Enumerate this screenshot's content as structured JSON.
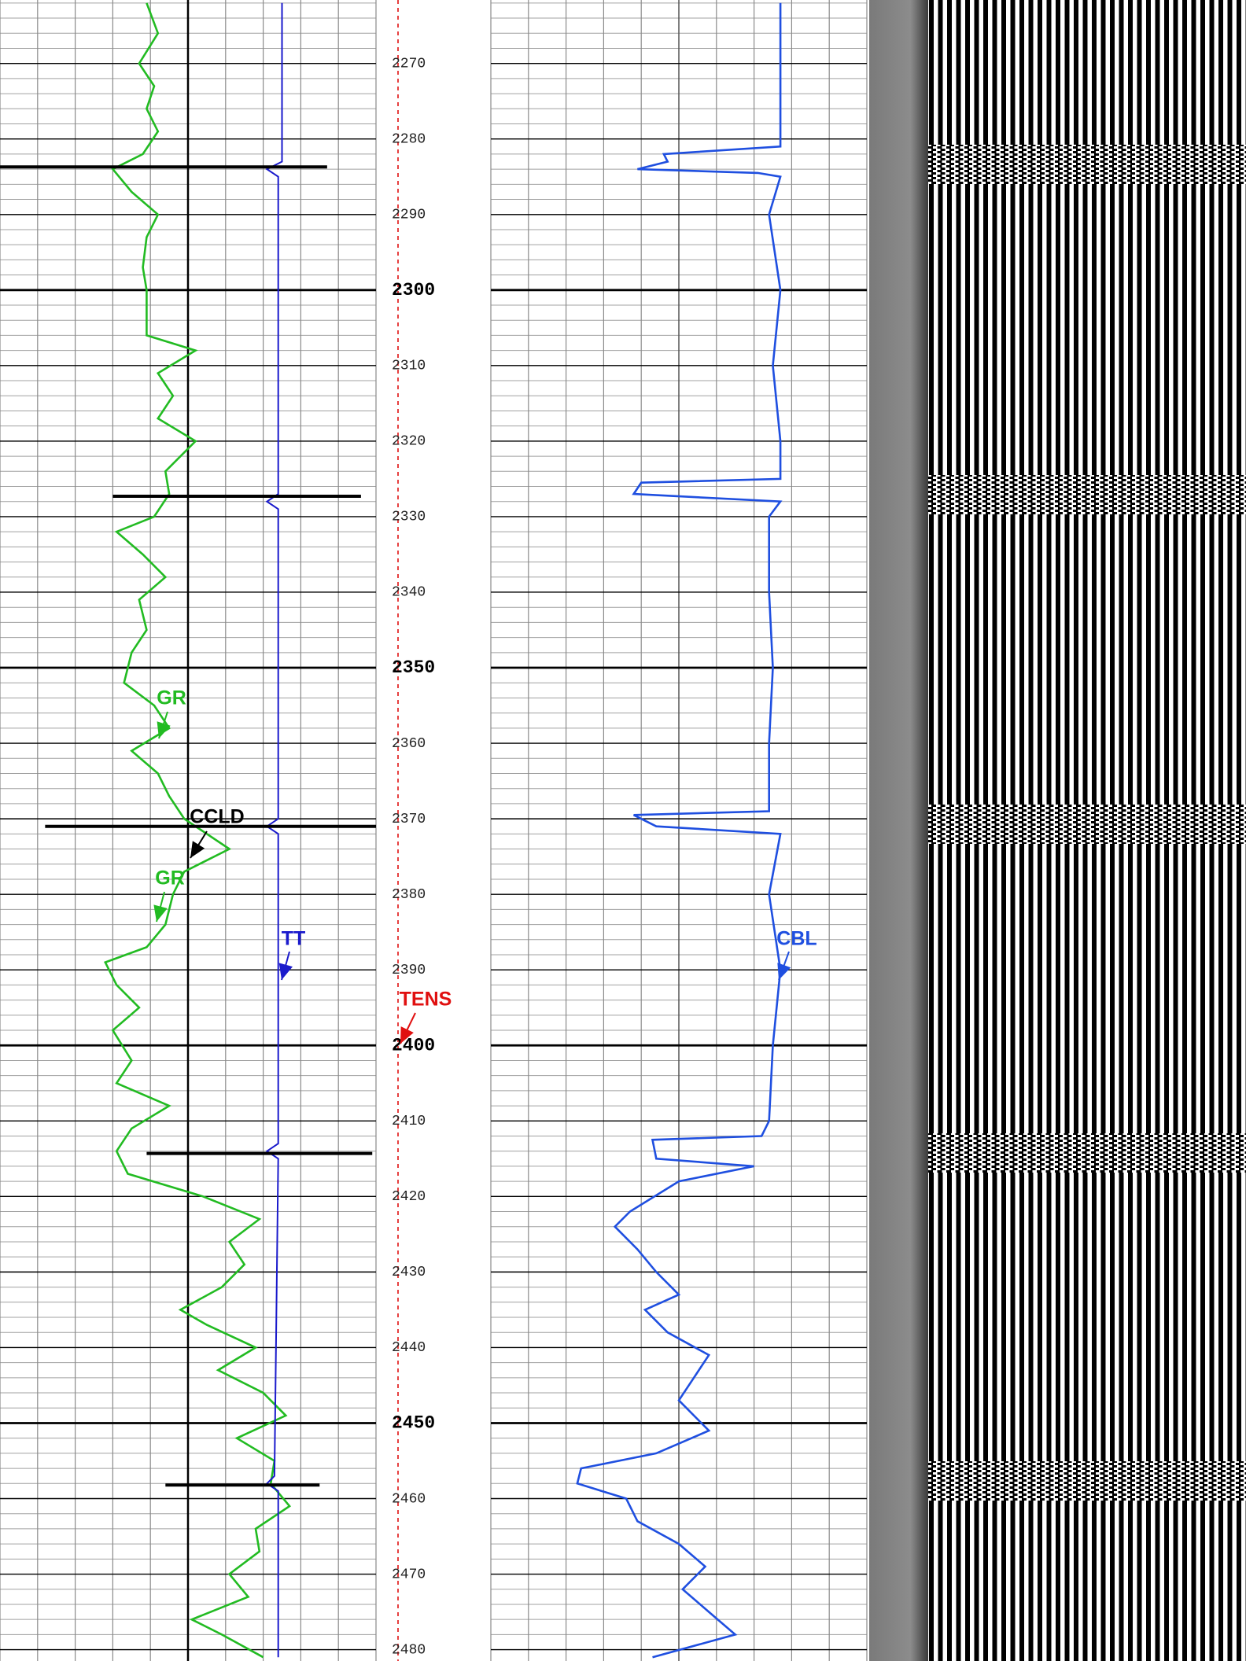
{
  "chart_data": {
    "type": "well_log",
    "ylim": [
      2481.5,
      2261.6
    ],
    "yticks": [
      2270,
      2280,
      2290,
      2300,
      2310,
      2320,
      2330,
      2340,
      2350,
      2360,
      2370,
      2380,
      2390,
      2400,
      2410,
      2420,
      2430,
      2440,
      2450,
      2460,
      2470,
      2480
    ],
    "major_tick_step": 50,
    "minor_tick_step": 2,
    "xlim": [
      0,
      10
    ],
    "track_divisions": 10,
    "series": [
      {
        "name": "GR",
        "color": "#22bb22",
        "track": 1,
        "x": [
          2262,
          2266,
          2270,
          2273,
          2276,
          2279,
          2282,
          2284,
          2287,
          2290,
          2293,
          2297,
          2300,
          2303,
          2306,
          2308,
          2311,
          2314,
          2317,
          2320,
          2324,
          2327,
          2330,
          2332,
          2335,
          2338,
          2341,
          2345,
          2348,
          2352,
          2355,
          2358,
          2361,
          2364,
          2367,
          2370,
          2374,
          2377,
          2380,
          2384,
          2387,
          2389,
          2392,
          2395,
          2398,
          2402,
          2405,
          2408,
          2411,
          2414,
          2417,
          2420,
          2423,
          2426,
          2429,
          2432,
          2435,
          2437,
          2440,
          2443,
          2446,
          2449,
          2452,
          2455,
          2458,
          2461,
          2464,
          2467,
          2470,
          2473,
          2476,
          2478,
          2481
        ],
        "values": [
          3.9,
          4.2,
          3.7,
          4.1,
          3.9,
          4.2,
          3.8,
          3.0,
          3.5,
          4.2,
          3.9,
          3.8,
          3.9,
          3.9,
          3.9,
          5.2,
          4.2,
          4.6,
          4.2,
          5.2,
          4.4,
          4.5,
          4.1,
          3.1,
          3.8,
          4.4,
          3.7,
          3.9,
          3.5,
          3.3,
          4.1,
          4.5,
          3.5,
          4.2,
          4.5,
          4.9,
          6.1,
          4.9,
          4.6,
          4.4,
          3.9,
          2.8,
          3.1,
          3.7,
          3.0,
          3.5,
          3.1,
          4.5,
          3.5,
          3.1,
          3.4,
          5.4,
          6.9,
          6.1,
          6.5,
          5.9,
          4.8,
          5.5,
          6.8,
          5.8,
          7.0,
          7.6,
          6.3,
          7.3,
          7.2,
          7.7,
          6.8,
          6.9,
          6.1,
          6.6,
          5.1,
          5.9,
          7.0
        ]
      },
      {
        "name": "TT",
        "color": "#1a1acc",
        "track": 1,
        "x": [
          2262,
          2283,
          2284,
          2285,
          2327,
          2328,
          2329,
          2370,
          2371,
          2372,
          2413,
          2414,
          2415,
          2457,
          2458,
          2459,
          2481
        ],
        "values": [
          7.5,
          7.5,
          7.1,
          7.4,
          7.4,
          7.1,
          7.4,
          7.4,
          7.1,
          7.4,
          7.4,
          7.1,
          7.4,
          7.3,
          7.1,
          7.4,
          7.4
        ]
      },
      {
        "name": "CBL",
        "color": "#1f4fe0",
        "track": 2,
        "x": [
          2262,
          2270,
          2280,
          2281,
          2282,
          2283,
          2284,
          2284.5,
          2285,
          2290,
          2300,
          2310,
          2320,
          2325,
          2325.5,
          2327,
          2328,
          2330,
          2340,
          2350,
          2360,
          2369,
          2369.5,
          2371,
          2372,
          2380,
          2390,
          2400,
          2410,
          2412,
          2412.5,
          2415,
          2416,
          2418,
          2422,
          2424,
          2427,
          2430,
          2433,
          2435,
          2438,
          2441,
          2444,
          2447,
          2451,
          2454,
          2456,
          2458,
          2460,
          2463,
          2466,
          2469,
          2472,
          2475,
          2478,
          2481
        ],
        "values": [
          7.7,
          7.7,
          7.7,
          7.7,
          4.6,
          4.7,
          3.9,
          7.1,
          7.7,
          7.4,
          7.7,
          7.5,
          7.7,
          7.7,
          4.0,
          3.8,
          7.7,
          7.4,
          7.4,
          7.5,
          7.4,
          7.4,
          3.8,
          4.4,
          7.7,
          7.4,
          7.7,
          7.5,
          7.4,
          7.2,
          4.3,
          4.4,
          7.0,
          5.0,
          3.7,
          3.3,
          3.9,
          4.4,
          5.0,
          4.1,
          4.7,
          5.8,
          5.4,
          5.0,
          5.8,
          4.4,
          2.4,
          2.3,
          3.6,
          3.9,
          5.0,
          5.7,
          5.1,
          5.8,
          6.5,
          4.3
        ]
      }
    ],
    "ccld": {
      "name": "CCLD",
      "color": "#000000",
      "track": 1,
      "x": [
        2283.7,
        2327.3,
        2371,
        2414.3,
        2458.2
      ],
      "left": [
        0,
        3.0,
        1.2,
        3.9,
        4.4
      ],
      "values": [
        8.7,
        9.6,
        10,
        9.9,
        8.5
      ]
    },
    "tens": {
      "name": "TENS",
      "color": "#e01010"
    }
  }
}
